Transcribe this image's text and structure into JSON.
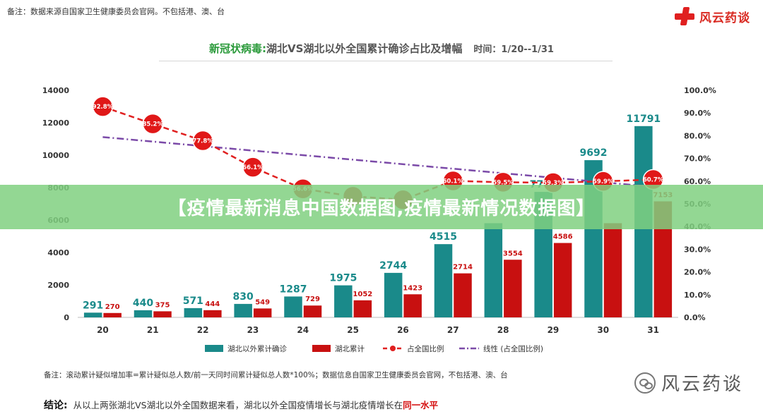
{
  "header": {
    "note": "备注：数据来源自国家卫生健康委员会官网。不包括港、澳、台",
    "brand": "风云药谈"
  },
  "title": {
    "prefix": "新冠状病毒:",
    "main": "湖北VS湖北以外全国累计确诊占比及增幅",
    "time": "时间：1/20--1/31"
  },
  "chart_data": {
    "type": "bar",
    "categories": [
      "20",
      "21",
      "22",
      "23",
      "24",
      "25",
      "26",
      "27",
      "28",
      "29",
      "30",
      "31"
    ],
    "series": [
      {
        "name": "湖北以外累计确诊",
        "type": "bar",
        "axis": "left",
        "color": "#1a8a8a",
        "values": [
          291,
          440,
          571,
          830,
          1287,
          1975,
          2744,
          4515,
          5806,
          7736,
          9692,
          11791
        ]
      },
      {
        "name": "湖北累计",
        "type": "bar",
        "axis": "left",
        "color": "#c81010",
        "values": [
          270,
          375,
          444,
          549,
          729,
          1052,
          1423,
          2714,
          3554,
          4586,
          5806,
          7153
        ]
      },
      {
        "name": "占全国比例",
        "type": "line",
        "axis": "right",
        "color": "#e02020",
        "values": [
          92.8,
          85.2,
          77.8,
          66.1,
          56.6,
          53.3,
          51.8,
          60.1,
          59.5,
          59.3,
          59.9,
          60.7
        ],
        "labels": [
          "92.8%",
          "85.2%",
          "77.8%",
          "66.1%",
          "56.6%",
          "53.3%",
          "51.8%",
          "60.1%",
          "59.5%",
          "59.3%",
          "59.9%",
          "60.7%"
        ]
      },
      {
        "name": "线性 (占全国比例)",
        "type": "trend",
        "axis": "right",
        "color": "#7b4aa8",
        "from": 79.4,
        "to": 57.5
      }
    ],
    "visible_labels": {
      "outside": [
        "291",
        "440",
        "571",
        "830",
        "1287",
        "1975",
        "2744",
        "4515",
        "",
        "7736",
        "9692",
        "11791"
      ],
      "hubei": [
        "270",
        "375",
        "444",
        "549",
        "729",
        "1052",
        "1423",
        "2714",
        "3554",
        "4586",
        "",
        "7153"
      ],
      "ratio": [
        "92.8%",
        "85.2%",
        "77.8%",
        "66.1%",
        "56.6%",
        "",
        "",
        "60.1%",
        "59.5%",
        "59.3%",
        "59.9%",
        "60.7%"
      ]
    },
    "y_left": {
      "min": 0,
      "max": 14000,
      "ticks": [
        "0",
        "2000",
        "4000",
        "6000",
        "8000",
        "10000",
        "12000",
        "14000"
      ]
    },
    "y_right": {
      "min": 0,
      "max": 100,
      "ticks": [
        "0.0%",
        "10.0%",
        "20.0%",
        "30.0%",
        "40.0%",
        "50.0%",
        "60.0%",
        "70.0%",
        "80.0%",
        "90.0%",
        "100.0%"
      ]
    },
    "legend": [
      "湖北以外累计确诊",
      "湖北累计",
      "占全国比例",
      "线性 (占全国比例)"
    ],
    "legend_position": "bottom"
  },
  "footer": {
    "note": "备注：滚动累计疑似增加率=累计疑似总人数/前一天同时间累计疑似总人数*100%；数据信息自国家卫生健康委员会官网，不包括港、澳、台",
    "conclusion_label": "结论:",
    "conclusion_text": "从以上两张湖北VS湖北以外全国数据来看，湖北以外全国疫情增长与湖北疫情增长在",
    "conclusion_highlight": "同一水平"
  },
  "watermark": "风云药谈",
  "banner": "【疫情最新消息中国数据图,疫情最新情况数据图】"
}
